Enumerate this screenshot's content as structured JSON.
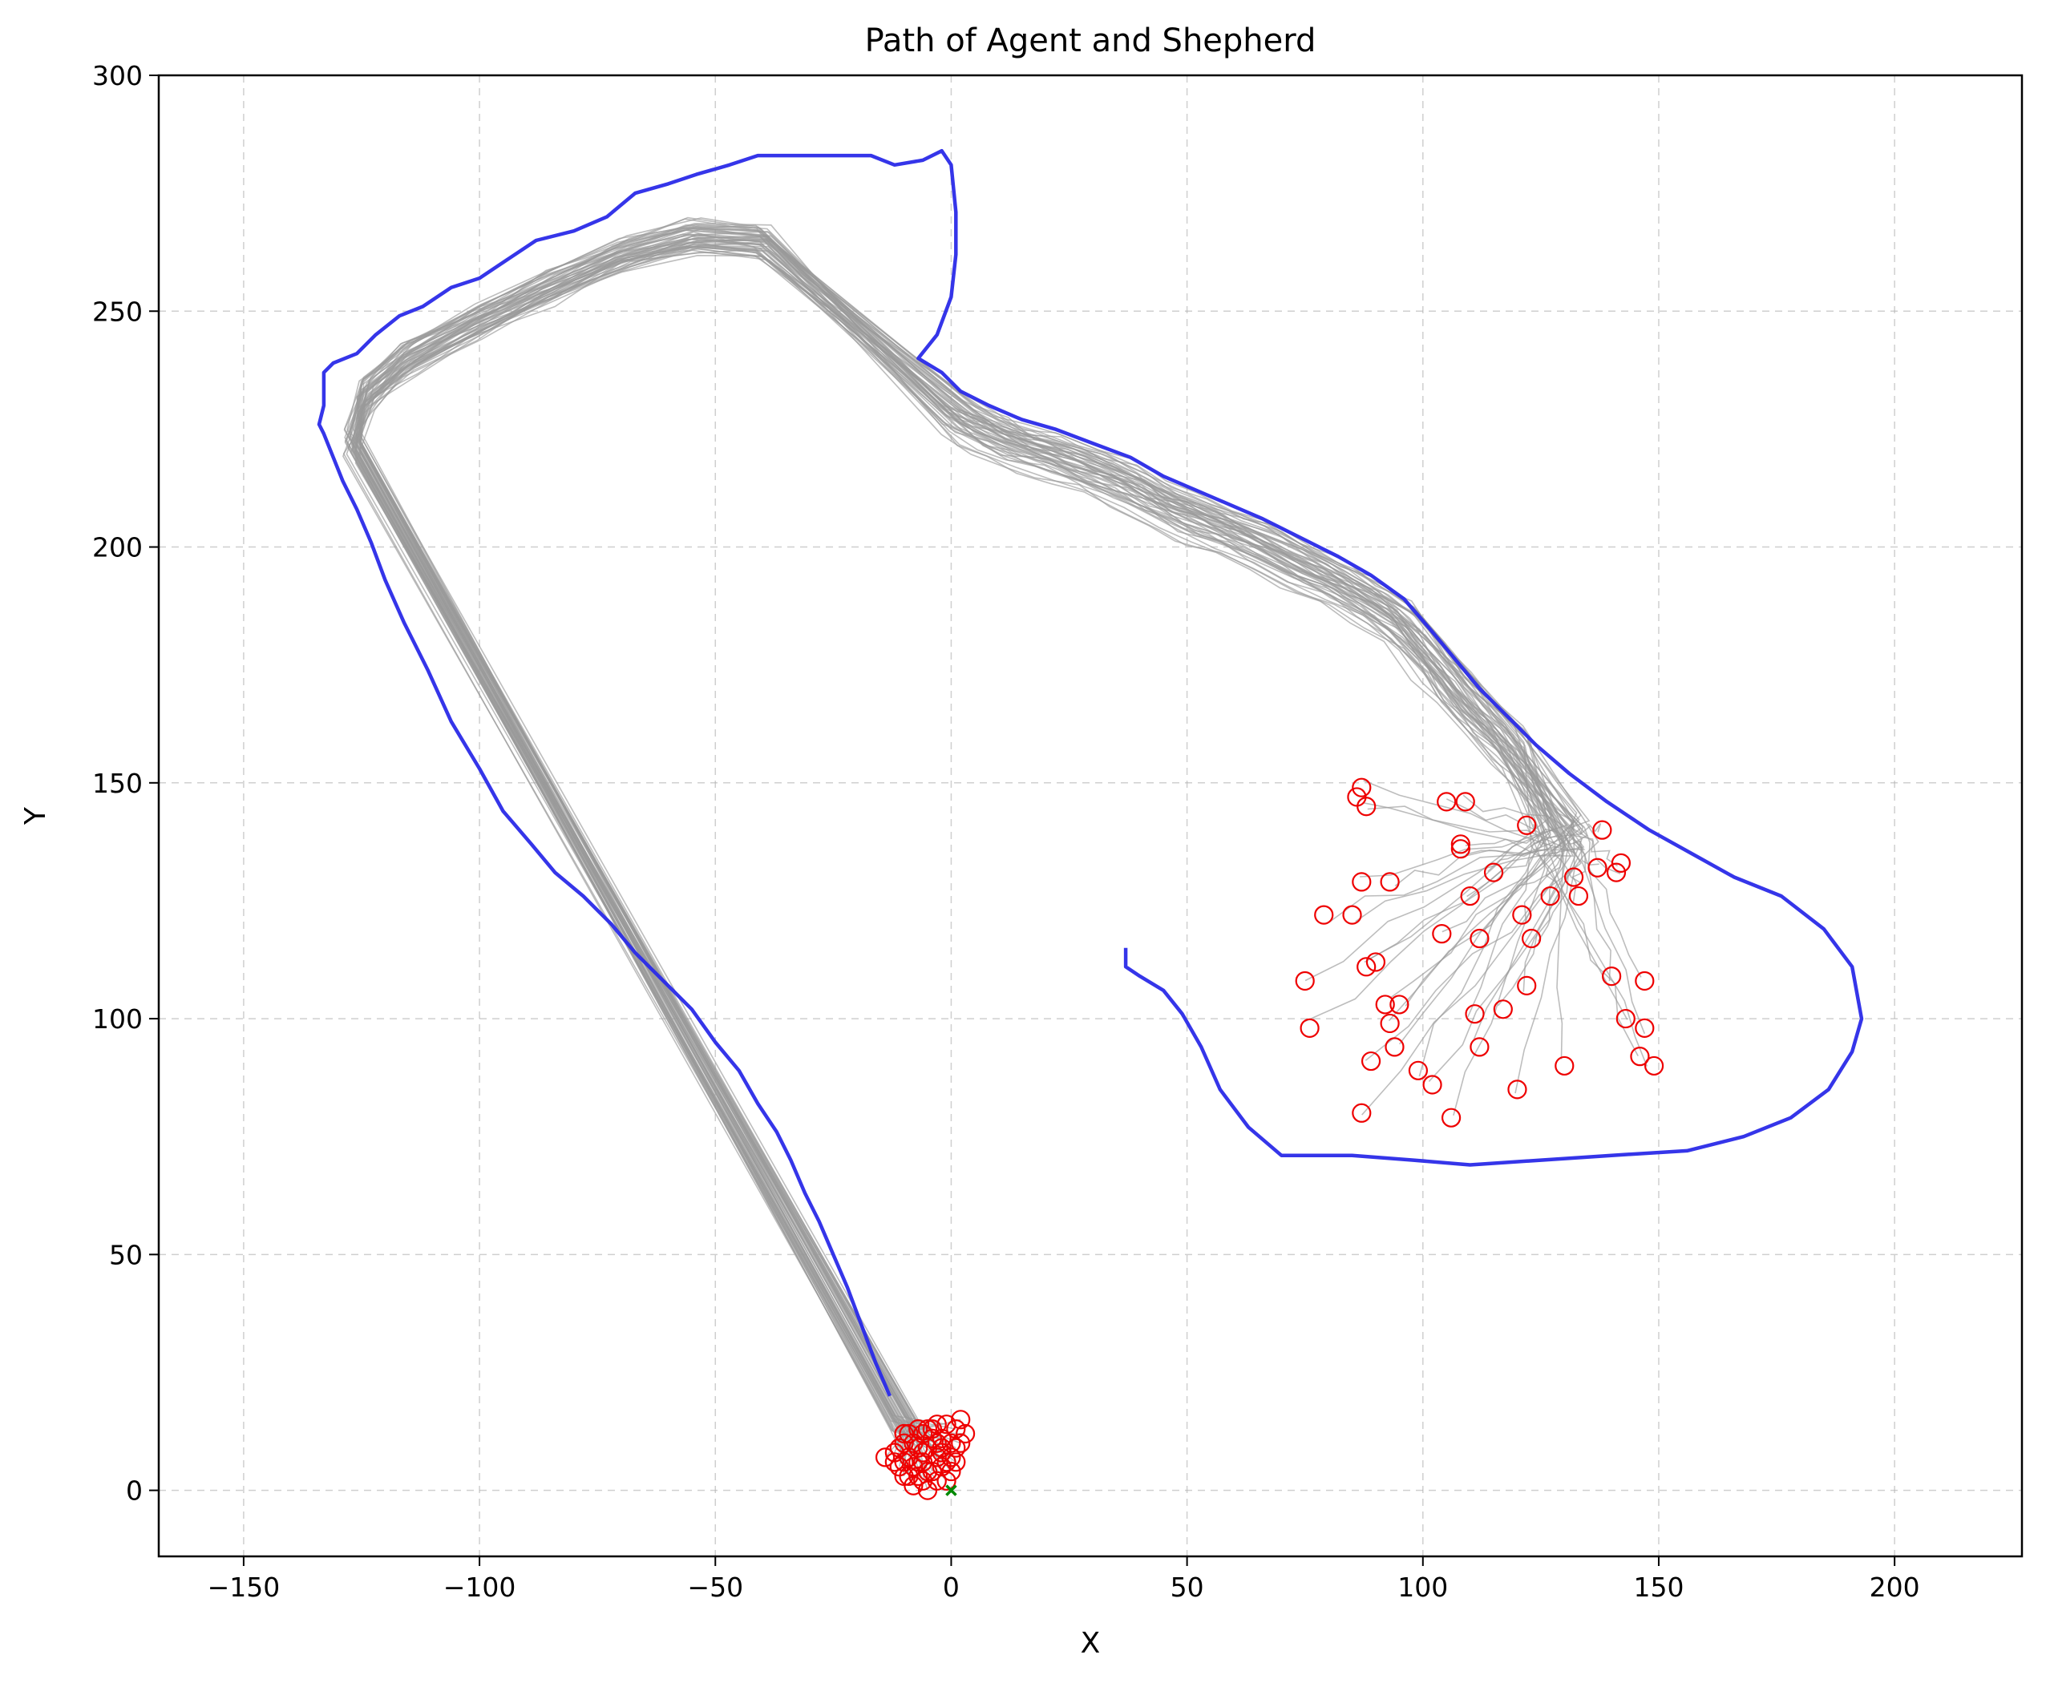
{
  "chart_data": {
    "type": "line",
    "title": "Path of Agent and Shepherd",
    "xlabel": "X",
    "ylabel": "Y",
    "xlim": [
      -168,
      227
    ],
    "ylim": [
      -14,
      300
    ],
    "xticks": [
      -150,
      -100,
      -50,
      0,
      50,
      100,
      150,
      200
    ],
    "yticks": [
      0,
      50,
      100,
      150,
      200,
      250,
      300
    ],
    "xtick_labels": [
      "−150",
      "−100",
      "−50",
      "0",
      "50",
      "100",
      "150",
      "200"
    ],
    "ytick_labels": [
      "0",
      "50",
      "100",
      "150",
      "200",
      "250",
      "300"
    ],
    "grid": true,
    "legend": "none",
    "colors": {
      "shepherd": "#2a2ae8",
      "agents": "#999999",
      "agent_positions": "#ee0000",
      "goal": "#008800"
    },
    "shepherd_path": [
      [
        -13,
        20
      ],
      [
        -16,
        27
      ],
      [
        -19,
        35
      ],
      [
        -22,
        43
      ],
      [
        -25,
        50
      ],
      [
        -28,
        57
      ],
      [
        -31,
        63
      ],
      [
        -34,
        70
      ],
      [
        -37,
        76
      ],
      [
        -41,
        82
      ],
      [
        -45,
        89
      ],
      [
        -50,
        95
      ],
      [
        -55,
        102
      ],
      [
        -61,
        108
      ],
      [
        -67,
        114
      ],
      [
        -72,
        120
      ],
      [
        -78,
        126
      ],
      [
        -84,
        131
      ],
      [
        -89,
        137
      ],
      [
        -95,
        144
      ],
      [
        -100,
        153
      ],
      [
        -106,
        163
      ],
      [
        -111,
        174
      ],
      [
        -116,
        184
      ],
      [
        -120,
        193
      ],
      [
        -123,
        201
      ],
      [
        -126,
        208
      ],
      [
        -129,
        214
      ],
      [
        -131,
        219
      ],
      [
        -133,
        224
      ],
      [
        -134,
        226
      ],
      [
        -133,
        230
      ],
      [
        -133,
        237
      ],
      [
        -131,
        239
      ],
      [
        -126,
        241
      ],
      [
        -122,
        245
      ],
      [
        -117,
        249
      ],
      [
        -112,
        251
      ],
      [
        -106,
        255
      ],
      [
        -100,
        257
      ],
      [
        -94,
        261
      ],
      [
        -88,
        265
      ],
      [
        -80,
        267
      ],
      [
        -73,
        270
      ],
      [
        -67,
        275
      ],
      [
        -60,
        277
      ],
      [
        -54,
        279
      ],
      [
        -47,
        281
      ],
      [
        -41,
        283
      ],
      [
        -33,
        283
      ],
      [
        -25,
        283
      ],
      [
        -17,
        283
      ],
      [
        -12,
        281
      ],
      [
        -6,
        282
      ],
      [
        -2,
        284
      ],
      [
        0,
        281
      ],
      [
        1,
        271
      ],
      [
        1,
        262
      ],
      [
        0,
        253
      ],
      [
        -3,
        245
      ],
      [
        -7,
        240
      ],
      [
        -2,
        237
      ],
      [
        2,
        233
      ],
      [
        8,
        230
      ],
      [
        15,
        227
      ],
      [
        22,
        225
      ],
      [
        30,
        222
      ],
      [
        38,
        219
      ],
      [
        45,
        215
      ],
      [
        52,
        212
      ],
      [
        59,
        209
      ],
      [
        66,
        206
      ],
      [
        74,
        202
      ],
      [
        82,
        198
      ],
      [
        89,
        194
      ],
      [
        96,
        189
      ],
      [
        102,
        182
      ],
      [
        107,
        176
      ],
      [
        112,
        170
      ],
      [
        118,
        164
      ],
      [
        124,
        158
      ],
      [
        131,
        152
      ],
      [
        139,
        146
      ],
      [
        148,
        140
      ],
      [
        157,
        135
      ],
      [
        166,
        130
      ],
      [
        176,
        126
      ],
      [
        185,
        119
      ],
      [
        191,
        111
      ],
      [
        193,
        100
      ],
      [
        191,
        93
      ],
      [
        186,
        85
      ],
      [
        178,
        79
      ],
      [
        168,
        75
      ],
      [
        156,
        72
      ],
      [
        140,
        71
      ],
      [
        125,
        70
      ],
      [
        110,
        69
      ],
      [
        98,
        70
      ],
      [
        85,
        71
      ],
      [
        74,
        71
      ],
      [
        70,
        71
      ],
      [
        63,
        77
      ],
      [
        57,
        85
      ],
      [
        53,
        94
      ],
      [
        49,
        101
      ],
      [
        45,
        106
      ],
      [
        40,
        109
      ],
      [
        37,
        111
      ],
      [
        37,
        115
      ]
    ],
    "agent_start_positions": [
      [
        87,
        149
      ],
      [
        86,
        147
      ],
      [
        88,
        145
      ],
      [
        105,
        146
      ],
      [
        109,
        146
      ],
      [
        122,
        141
      ],
      [
        138,
        140
      ],
      [
        108,
        136
      ],
      [
        108,
        137
      ],
      [
        115,
        131
      ],
      [
        142,
        133
      ],
      [
        141,
        131
      ],
      [
        137,
        132
      ],
      [
        132,
        130
      ],
      [
        87,
        129
      ],
      [
        93,
        129
      ],
      [
        127,
        126
      ],
      [
        133,
        126
      ],
      [
        110,
        126
      ],
      [
        79,
        122
      ],
      [
        85,
        122
      ],
      [
        121,
        122
      ],
      [
        104,
        118
      ],
      [
        112,
        117
      ],
      [
        123,
        117
      ],
      [
        88,
        111
      ],
      [
        90,
        112
      ],
      [
        75,
        108
      ],
      [
        122,
        107
      ],
      [
        140,
        109
      ],
      [
        147,
        108
      ],
      [
        92,
        103
      ],
      [
        95,
        103
      ],
      [
        117,
        102
      ],
      [
        111,
        101
      ],
      [
        93,
        99
      ],
      [
        143,
        100
      ],
      [
        76,
        98
      ],
      [
        147,
        98
      ],
      [
        94,
        94
      ],
      [
        112,
        94
      ],
      [
        89,
        91
      ],
      [
        146,
        92
      ],
      [
        149,
        90
      ],
      [
        130,
        90
      ],
      [
        99,
        89
      ],
      [
        102,
        86
      ],
      [
        120,
        85
      ],
      [
        87,
        80
      ],
      [
        106,
        79
      ]
    ],
    "agent_final_positions": [
      [
        -14,
        7
      ],
      [
        -12,
        8
      ],
      [
        -11,
        5
      ],
      [
        -10,
        10
      ],
      [
        -10,
        3
      ],
      [
        -9,
        7
      ],
      [
        -9,
        12
      ],
      [
        -8,
        5
      ],
      [
        -8,
        1
      ],
      [
        -7,
        9
      ],
      [
        -7,
        3
      ],
      [
        -6,
        12
      ],
      [
        -6,
        6
      ],
      [
        -5,
        0
      ],
      [
        -5,
        9
      ],
      [
        -4,
        4
      ],
      [
        -4,
        13
      ],
      [
        -3,
        7
      ],
      [
        -3,
        2
      ],
      [
        -2,
        11
      ],
      [
        -2,
        9
      ],
      [
        -1,
        6
      ],
      [
        -1,
        14
      ],
      [
        0,
        10
      ],
      [
        0,
        4
      ],
      [
        1,
        9
      ],
      [
        1,
        13
      ],
      [
        2,
        15
      ],
      [
        3,
        12
      ],
      [
        2,
        10
      ],
      [
        -11,
        9
      ],
      [
        -9,
        3
      ],
      [
        -7,
        13
      ],
      [
        -5,
        4
      ],
      [
        -3,
        10
      ],
      [
        -1,
        2
      ],
      [
        -12,
        6
      ],
      [
        -10,
        12
      ],
      [
        -6,
        8
      ],
      [
        -4,
        11
      ],
      [
        -2,
        5
      ],
      [
        0,
        7
      ],
      [
        -8,
        10
      ],
      [
        -6,
        2
      ],
      [
        -3,
        14
      ],
      [
        -10,
        6
      ],
      [
        -7,
        6
      ],
      [
        -5,
        13
      ],
      [
        -2,
        8
      ],
      [
        1,
        6
      ]
    ],
    "goal": [
      0,
      0
    ]
  }
}
